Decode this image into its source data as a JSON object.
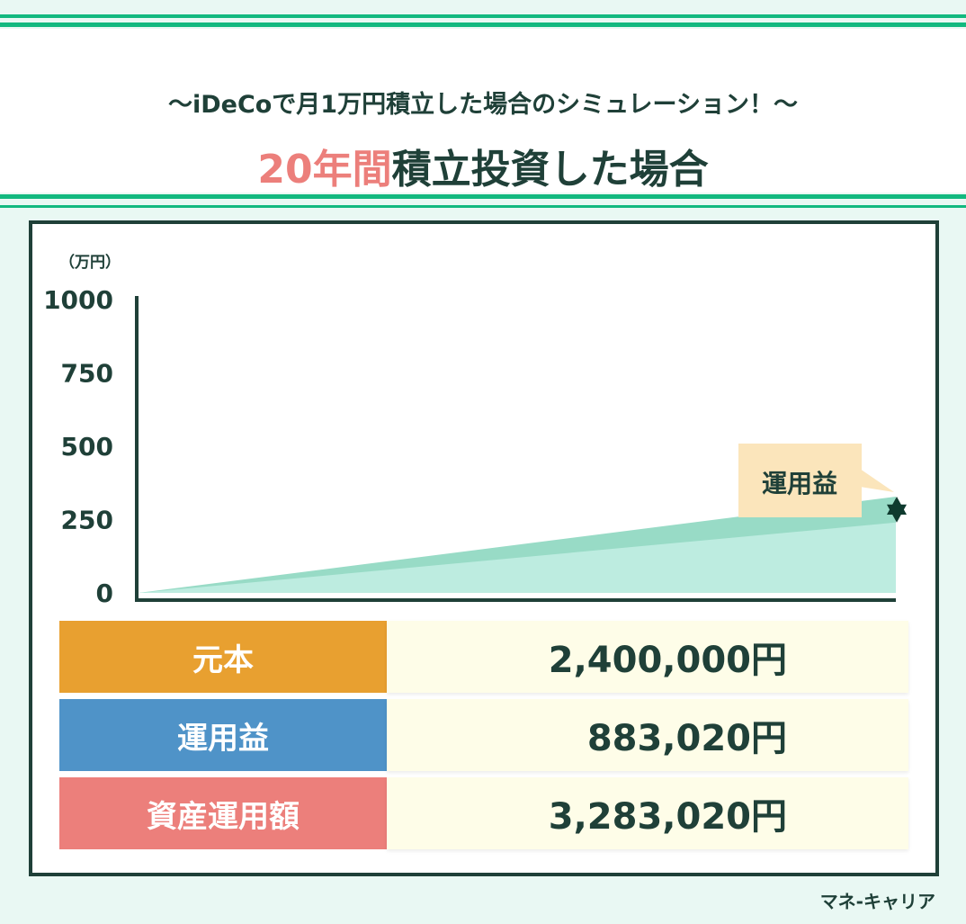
{
  "header": {
    "subtitle": "〜iDeCoで月1万円積立した場合のシミュレーション！〜",
    "title_highlight": "20年間",
    "title_rest": "積立投資した場合"
  },
  "chart_data": {
    "type": "area",
    "ylabel": "（万円）",
    "ylim": [
      0,
      1000
    ],
    "yticks": [
      "1000",
      "750",
      "500",
      "250",
      "0"
    ],
    "x": [
      0,
      20
    ],
    "series": [
      {
        "values": [
          0,
          240
        ],
        "color": "#bdece0"
      },
      {
        "values": [
          0,
          328.302
        ],
        "color": "#98dbc6"
      }
    ],
    "annotation": "運用益",
    "grid": false
  },
  "table": [
    {
      "label": "元本",
      "value": "2,400,000円",
      "color": "#e8a030"
    },
    {
      "label": "運用益",
      "value": "883,020円",
      "color": "#4f93c8"
    },
    {
      "label": "資産運用額",
      "value": "3,283,020円",
      "color": "#ec7f7b"
    }
  ],
  "footer": {
    "brand": "マネ-キャリア"
  }
}
